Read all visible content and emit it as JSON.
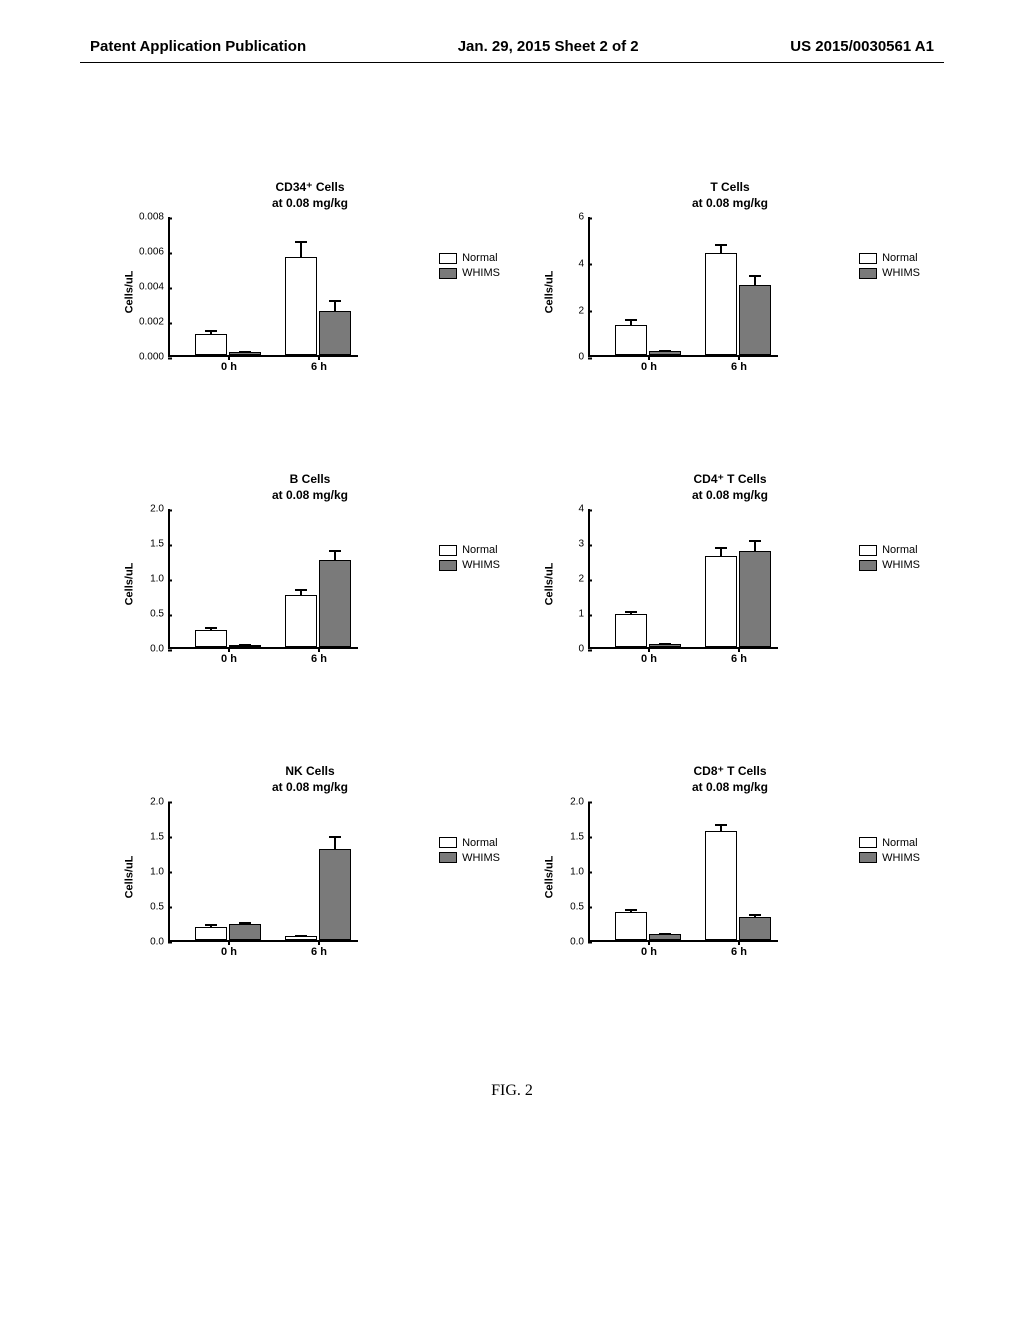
{
  "header": {
    "left": "Patent Application Publication",
    "center": "Jan. 29, 2015  Sheet 2 of 2",
    "right": "US 2015/0030561 A1"
  },
  "figure_caption": "FIG. 2",
  "legend": {
    "normal": "Normal",
    "whims": "WHIMS"
  },
  "ylabel": "Cells/uL",
  "xlabels": {
    "t0": "0 h",
    "t6": "6 h"
  },
  "charts": [
    {
      "title_l1": "CD34⁺ Cells",
      "title_l2": "at 0.08 mg/kg",
      "ymax": 0.008,
      "yticks": [
        "0.000",
        "0.002",
        "0.004",
        "0.006",
        "0.008"
      ],
      "groups": [
        {
          "normal": 0.0012,
          "normal_err": 0.0003,
          "whims": 0.0002,
          "whims_err": 0.0001
        },
        {
          "normal": 0.0056,
          "normal_err": 0.001,
          "whims": 0.0025,
          "whims_err": 0.0007
        }
      ],
      "colors": {
        "normal": "#ffffff",
        "whims": "#7a7a7a"
      }
    },
    {
      "title_l1": "T Cells",
      "title_l2": "at 0.08 mg/kg",
      "ymax": 6,
      "yticks": [
        "0",
        "2",
        "4",
        "6"
      ],
      "groups": [
        {
          "normal": 1.3,
          "normal_err": 0.3,
          "whims": 0.2,
          "whims_err": 0.05
        },
        {
          "normal": 4.4,
          "normal_err": 0.4,
          "whims": 3.0,
          "whims_err": 0.5
        }
      ],
      "colors": {
        "normal": "#ffffff",
        "whims": "#7a7a7a"
      }
    },
    {
      "title_l1": "B Cells",
      "title_l2": "at 0.08 mg/kg",
      "ymax": 2.0,
      "yticks": [
        "0.0",
        "0.5",
        "1.0",
        "1.5",
        "2.0"
      ],
      "groups": [
        {
          "normal": 0.25,
          "normal_err": 0.06,
          "whims": 0.03,
          "whims_err": 0.01
        },
        {
          "normal": 0.75,
          "normal_err": 0.1,
          "whims": 1.25,
          "whims_err": 0.15
        }
      ],
      "colors": {
        "normal": "#ffffff",
        "whims": "#7a7a7a"
      }
    },
    {
      "title_l1": "CD4⁺ T Cells",
      "title_l2": "at 0.08 mg/kg",
      "ymax": 4,
      "yticks": [
        "0",
        "1",
        "2",
        "3",
        "4"
      ],
      "groups": [
        {
          "normal": 0.95,
          "normal_err": 0.12,
          "whims": 0.1,
          "whims_err": 0.03
        },
        {
          "normal": 2.6,
          "normal_err": 0.3,
          "whims": 2.75,
          "whims_err": 0.35
        }
      ],
      "colors": {
        "normal": "#ffffff",
        "whims": "#7a7a7a"
      }
    },
    {
      "title_l1": "NK Cells",
      "title_l2": "at 0.08 mg/kg",
      "ymax": 2.0,
      "yticks": [
        "0.0",
        "0.5",
        "1.0",
        "1.5",
        "2.0"
      ],
      "groups": [
        {
          "normal": 0.18,
          "normal_err": 0.05,
          "whims": 0.22,
          "whims_err": 0.04
        },
        {
          "normal": 0.05,
          "normal_err": 0.01,
          "whims": 1.3,
          "whims_err": 0.2
        }
      ],
      "colors": {
        "normal": "#ffffff",
        "whims": "#7a7a7a"
      }
    },
    {
      "title_l1": "CD8⁺ T Cells",
      "title_l2": "at 0.08 mg/kg",
      "ymax": 2.0,
      "yticks": [
        "0.0",
        "0.5",
        "1.0",
        "1.5",
        "2.0"
      ],
      "groups": [
        {
          "normal": 0.4,
          "normal_err": 0.05,
          "whims": 0.08,
          "whims_err": 0.02
        },
        {
          "normal": 1.55,
          "normal_err": 0.12,
          "whims": 0.32,
          "whims_err": 0.06
        }
      ],
      "colors": {
        "normal": "#ffffff",
        "whims": "#7a7a7a"
      }
    }
  ]
}
